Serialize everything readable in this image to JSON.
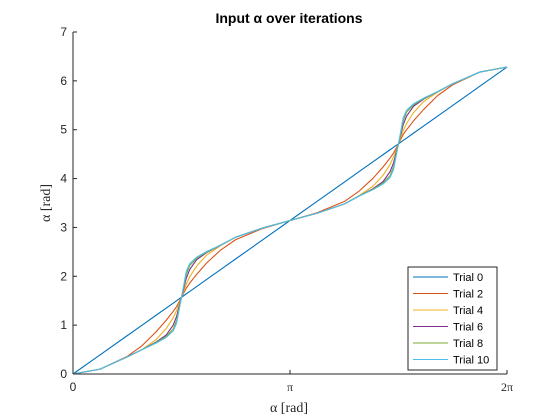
{
  "chart_data": {
    "type": "line",
    "title": "Input α over iterations",
    "xlabel": "α [rad]",
    "ylabel": "α [rad]",
    "xlim": [
      0,
      6.2832
    ],
    "ylim": [
      0,
      7
    ],
    "x_ticks": [
      {
        "value": 0,
        "label": "0"
      },
      {
        "value": 3.1416,
        "label": "π"
      },
      {
        "value": 6.2832,
        "label": "2π"
      }
    ],
    "y_ticks": [
      0,
      1,
      2,
      3,
      4,
      5,
      6,
      7
    ],
    "grid": false,
    "legend_position": "bottom-right",
    "x": [
      0,
      0.3927,
      0.7854,
      1.0,
      1.2,
      1.35,
      1.45,
      1.5,
      1.5708,
      1.64,
      1.69,
      1.79,
      1.94,
      2.14,
      2.3562,
      2.7489,
      3.1416,
      3.5343,
      3.927,
      4.14,
      4.34,
      4.49,
      4.59,
      4.64,
      4.7124,
      4.78,
      4.83,
      4.93,
      5.08,
      5.28,
      5.4978,
      5.8905,
      6.2832
    ],
    "series": [
      {
        "name": "Trial 0",
        "color": "#0072BD",
        "values": [
          0,
          0.3927,
          0.7854,
          1.0,
          1.2,
          1.35,
          1.45,
          1.5,
          1.5708,
          1.64,
          1.69,
          1.79,
          1.94,
          2.14,
          2.3562,
          2.7489,
          3.1416,
          3.5343,
          3.927,
          4.14,
          4.34,
          4.49,
          4.59,
          4.64,
          4.7124,
          4.78,
          4.83,
          4.93,
          5.08,
          5.28,
          5.4978,
          5.8905,
          6.2832
        ]
      },
      {
        "name": "Trial 2",
        "color": "#D95319",
        "values": [
          0,
          0.1,
          0.36,
          0.58,
          0.86,
          1.1,
          1.28,
          1.38,
          1.5708,
          1.76,
          1.86,
          2.04,
          2.28,
          2.54,
          2.75,
          2.98,
          3.1416,
          3.3,
          3.53,
          3.74,
          4.0,
          4.24,
          4.42,
          4.52,
          4.7124,
          4.9,
          5.0,
          5.18,
          5.42,
          5.7,
          5.92,
          6.18,
          6.2832
        ]
      },
      {
        "name": "Trial 4",
        "color": "#EDB120",
        "values": [
          0,
          0.1,
          0.35,
          0.5,
          0.7,
          0.93,
          1.15,
          1.3,
          1.5708,
          1.84,
          1.99,
          2.21,
          2.44,
          2.63,
          2.8,
          2.99,
          3.1416,
          3.29,
          3.48,
          3.65,
          3.84,
          4.07,
          4.29,
          4.44,
          4.7124,
          4.98,
          5.13,
          5.35,
          5.58,
          5.77,
          5.94,
          6.18,
          6.2832
        ]
      },
      {
        "name": "Trial 6",
        "color": "#7E2F8E",
        "values": [
          0,
          0.1,
          0.35,
          0.5,
          0.65,
          0.8,
          1.0,
          1.18,
          1.5708,
          1.96,
          2.14,
          2.34,
          2.49,
          2.64,
          2.8,
          2.99,
          3.1416,
          3.29,
          3.48,
          3.64,
          3.79,
          3.94,
          4.14,
          4.32,
          4.7124,
          5.1,
          5.28,
          5.48,
          5.63,
          5.78,
          5.94,
          6.18,
          6.2832
        ]
      },
      {
        "name": "Trial 8",
        "color": "#77AC30",
        "values": [
          0,
          0.1,
          0.35,
          0.5,
          0.64,
          0.77,
          0.92,
          1.1,
          1.5708,
          2.04,
          2.22,
          2.37,
          2.5,
          2.64,
          2.8,
          2.99,
          3.1416,
          3.29,
          3.48,
          3.64,
          3.78,
          3.91,
          4.06,
          4.24,
          4.7124,
          5.18,
          5.36,
          5.51,
          5.64,
          5.78,
          5.94,
          6.18,
          6.2832
        ]
      },
      {
        "name": "Trial 10",
        "color": "#4DBEEE",
        "values": [
          0,
          0.1,
          0.35,
          0.5,
          0.63,
          0.75,
          0.88,
          1.04,
          1.5708,
          2.1,
          2.26,
          2.39,
          2.51,
          2.64,
          2.8,
          2.99,
          3.1416,
          3.29,
          3.48,
          3.64,
          3.77,
          3.89,
          4.02,
          4.18,
          4.7124,
          5.24,
          5.4,
          5.53,
          5.65,
          5.78,
          5.94,
          6.18,
          6.2832
        ]
      }
    ]
  }
}
